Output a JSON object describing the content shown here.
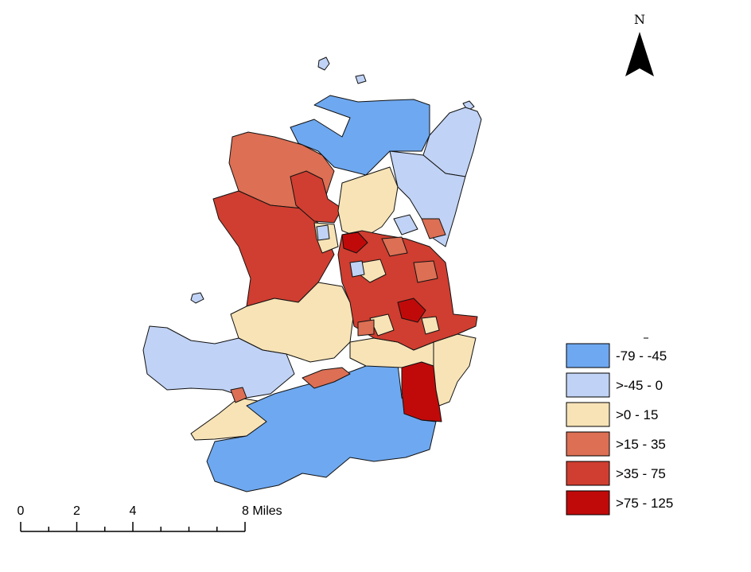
{
  "north_arrow": {
    "label": "N"
  },
  "legend": {
    "classes": [
      {
        "label": "-79 - -45",
        "color": "#6ea8f0"
      },
      {
        "label": ">-45 - 0",
        "color": "#c0d2f5"
      },
      {
        "label": ">0 - 15",
        "color": "#f7e3b6"
      },
      {
        "label": ">15 - 35",
        "color": "#dc6f54"
      },
      {
        "label": ">35 - 75",
        "color": "#cf3e30"
      },
      {
        "label": ">75 - 125",
        "color": "#c00a0a"
      }
    ]
  },
  "scale_bar": {
    "ticks": [
      "0",
      "2",
      "4",
      "8 Miles"
    ]
  }
}
